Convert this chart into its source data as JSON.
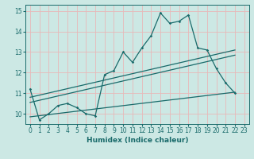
{
  "title": "",
  "xlabel": "Humidex (Indice chaleur)",
  "ylabel": "",
  "bg_color": "#cce8e4",
  "grid_color": "#e8b8b8",
  "line_color": "#1a6b6b",
  "xlim": [
    -0.5,
    23.5
  ],
  "ylim": [
    9.5,
    15.3
  ],
  "xticks": [
    0,
    1,
    2,
    3,
    4,
    5,
    6,
    7,
    8,
    9,
    10,
    11,
    12,
    13,
    14,
    15,
    16,
    17,
    18,
    19,
    20,
    21,
    22,
    23
  ],
  "yticks": [
    10,
    11,
    12,
    13,
    14,
    15
  ],
  "wavy_x": [
    0,
    1,
    2,
    3,
    4,
    5,
    6,
    7,
    8,
    9,
    10,
    11,
    12,
    13,
    14,
    15,
    16,
    17,
    18,
    19,
    20,
    21,
    22
  ],
  "wavy_y": [
    11.2,
    9.7,
    10.0,
    10.4,
    10.5,
    10.3,
    10.0,
    9.9,
    11.9,
    12.1,
    13.0,
    12.5,
    13.2,
    13.8,
    14.9,
    14.4,
    14.5,
    14.8,
    13.2,
    13.1,
    12.2,
    11.5,
    11.0
  ],
  "line1_x": [
    0,
    22
  ],
  "line1_y": [
    10.8,
    13.1
  ],
  "line2_x": [
    0,
    22
  ],
  "line2_y": [
    10.55,
    12.85
  ],
  "line3_x": [
    0,
    22
  ],
  "line3_y": [
    9.85,
    11.05
  ]
}
